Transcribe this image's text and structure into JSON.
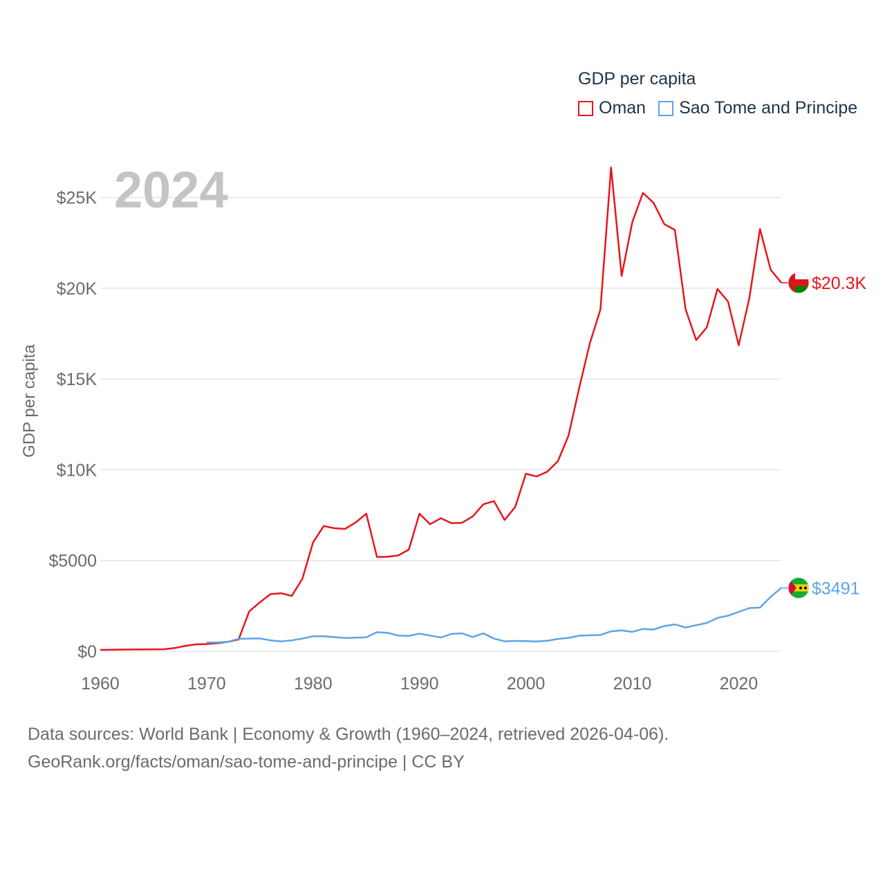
{
  "chart_data": {
    "type": "line",
    "year_label": "2024",
    "legend_title": "GDP per capita",
    "ylabel": "GDP per capita",
    "xlabel": "",
    "xlim": [
      1960,
      2024
    ],
    "ylim": [
      0,
      27000
    ],
    "x_ticks": [
      "1960",
      "1970",
      "1980",
      "1990",
      "2000",
      "2010",
      "2020"
    ],
    "x_tick_values": [
      1960,
      1970,
      1980,
      1990,
      2000,
      2010,
      2020
    ],
    "y_ticks": [
      "$0",
      "$5000",
      "$10K",
      "$15K",
      "$20K",
      "$25K"
    ],
    "y_tick_values": [
      0,
      5000,
      10000,
      15000,
      20000,
      25000
    ],
    "grid": true,
    "series": [
      {
        "name": "Oman",
        "color": "#e8141c",
        "end_label": "$20.3K",
        "flag_icon": "oman-flag-icon",
        "x": [
          1960,
          1961,
          1962,
          1963,
          1964,
          1965,
          1966,
          1967,
          1968,
          1969,
          1970,
          1971,
          1972,
          1973,
          1974,
          1975,
          1976,
          1977,
          1978,
          1979,
          1980,
          1981,
          1982,
          1983,
          1984,
          1985,
          1986,
          1987,
          1988,
          1989,
          1990,
          1991,
          1992,
          1993,
          1994,
          1995,
          1996,
          1997,
          1998,
          1999,
          2000,
          2001,
          2002,
          2003,
          2004,
          2005,
          2006,
          2007,
          2008,
          2009,
          2010,
          2011,
          2012,
          2013,
          2014,
          2015,
          2016,
          2017,
          2018,
          2019,
          2020,
          2021,
          2022,
          2023,
          2024
        ],
        "values": [
          80,
          85,
          95,
          100,
          105,
          110,
          115,
          180,
          300,
          380,
          400,
          450,
          520,
          650,
          2200,
          2700,
          3150,
          3200,
          3050,
          4000,
          6000,
          6900,
          6780,
          6740,
          7100,
          7580,
          5200,
          5210,
          5280,
          5600,
          7580,
          7000,
          7330,
          7060,
          7080,
          7430,
          8100,
          8270,
          7230,
          7950,
          9780,
          9630,
          9890,
          10470,
          11870,
          14490,
          16950,
          18820,
          26650,
          20680,
          23640,
          25250,
          24700,
          23530,
          23210,
          18850,
          17140,
          17840,
          19960,
          19260,
          16850,
          19460,
          23260,
          21020,
          20300
        ]
      },
      {
        "name": "Sao Tome and Principe",
        "color": "#5ba4e6",
        "end_label": "$3491",
        "flag_icon": "sao-tome-flag-icon",
        "x": [
          1970,
          1971,
          1972,
          1973,
          1974,
          1975,
          1976,
          1977,
          1978,
          1979,
          1980,
          1981,
          1982,
          1983,
          1984,
          1985,
          1986,
          1987,
          1988,
          1989,
          1990,
          1991,
          1992,
          1993,
          1994,
          1995,
          1996,
          1997,
          1998,
          1999,
          2000,
          2001,
          2002,
          2003,
          2004,
          2005,
          2006,
          2007,
          2008,
          2009,
          2010,
          2011,
          2012,
          2013,
          2014,
          2015,
          2016,
          2017,
          2018,
          2019,
          2020,
          2021,
          2022,
          2023,
          2024
        ],
        "values": [
          480,
          490,
          520,
          690,
          700,
          710,
          600,
          550,
          600,
          700,
          830,
          830,
          780,
          730,
          750,
          770,
          1050,
          1020,
          870,
          850,
          970,
          870,
          760,
          960,
          990,
          790,
          990,
          700,
          550,
          570,
          560,
          540,
          580,
          680,
          740,
          860,
          880,
          900,
          1100,
          1150,
          1070,
          1230,
          1200,
          1390,
          1480,
          1310,
          1440,
          1560,
          1840,
          1960,
          2170,
          2380,
          2410,
          3000,
          3491
        ]
      }
    ]
  },
  "footer": {
    "line1": "Data sources: World Bank | Economy & Growth (1960–2024, retrieved 2026-04-06).",
    "line2": "GeoRank.org/facts/oman/sao-tome-and-principe | CC BY"
  }
}
